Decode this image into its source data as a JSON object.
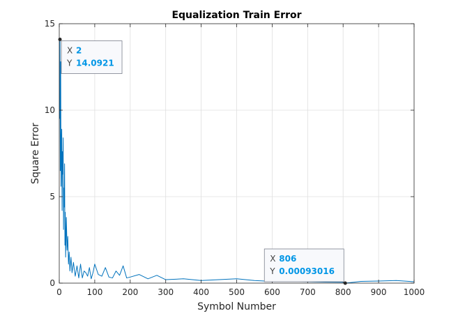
{
  "chart_data": {
    "type": "line",
    "title": "Equalization Train Error",
    "xlabel": "Symbol Number",
    "ylabel": "Square Error",
    "xlim": [
      0,
      1000
    ],
    "ylim": [
      0,
      15
    ],
    "xticks": [
      0,
      100,
      200,
      300,
      400,
      500,
      600,
      700,
      800,
      900,
      1000
    ],
    "yticks": [
      0,
      5,
      10,
      15
    ],
    "xtick_labels": [
      "0",
      "100",
      "200",
      "300",
      "400",
      "500",
      "600",
      "700",
      "800",
      "900",
      "1000"
    ],
    "ytick_labels": [
      "0",
      "5",
      "10",
      "15"
    ],
    "grid": true,
    "series": [
      {
        "color": "#0072BD",
        "x": [
          1,
          2,
          3,
          4,
          5,
          6,
          7,
          8,
          9,
          10,
          11,
          12,
          13,
          14,
          15,
          16,
          17,
          18,
          20,
          22,
          24,
          26,
          28,
          30,
          33,
          36,
          40,
          45,
          50,
          55,
          60,
          65,
          70,
          75,
          80,
          85,
          90,
          95,
          100,
          110,
          120,
          130,
          140,
          150,
          160,
          170,
          180,
          190,
          200,
          225,
          250,
          275,
          300,
          350,
          400,
          450,
          500,
          550,
          600,
          650,
          700,
          750,
          800,
          806,
          850,
          900,
          950,
          1000
        ],
        "y": [
          9.5,
          14.0921,
          6.5,
          12.8,
          5.6,
          8.1,
          8.9,
          4.2,
          7.6,
          6.3,
          8.4,
          3.1,
          5.5,
          4.4,
          6.9,
          2.2,
          4.1,
          1.5,
          3.8,
          1.9,
          2.7,
          1.1,
          1.8,
          0.7,
          1.5,
          0.6,
          1.2,
          0.4,
          1.0,
          0.3,
          1.1,
          0.3,
          0.7,
          0.6,
          0.4,
          0.9,
          0.25,
          0.6,
          1.1,
          0.5,
          0.4,
          0.9,
          0.35,
          0.3,
          0.7,
          0.45,
          1.0,
          0.3,
          0.35,
          0.5,
          0.25,
          0.45,
          0.2,
          0.25,
          0.15,
          0.2,
          0.25,
          0.15,
          0.1,
          0.12,
          0.08,
          0.06,
          0.05,
          0.00093016,
          0.1,
          0.12,
          0.15,
          0.08
        ]
      }
    ],
    "datatips": [
      {
        "x_key": "X",
        "x_val": "2",
        "y_key": "Y",
        "y_val": "14.0921",
        "x": 2,
        "y": 14.0921
      },
      {
        "x_key": "X",
        "x_val": "806",
        "y_key": "Y",
        "y_val": "0.00093016",
        "x": 806,
        "y": 0.00093016
      }
    ],
    "datatip_value_color": "#0096E6"
  }
}
